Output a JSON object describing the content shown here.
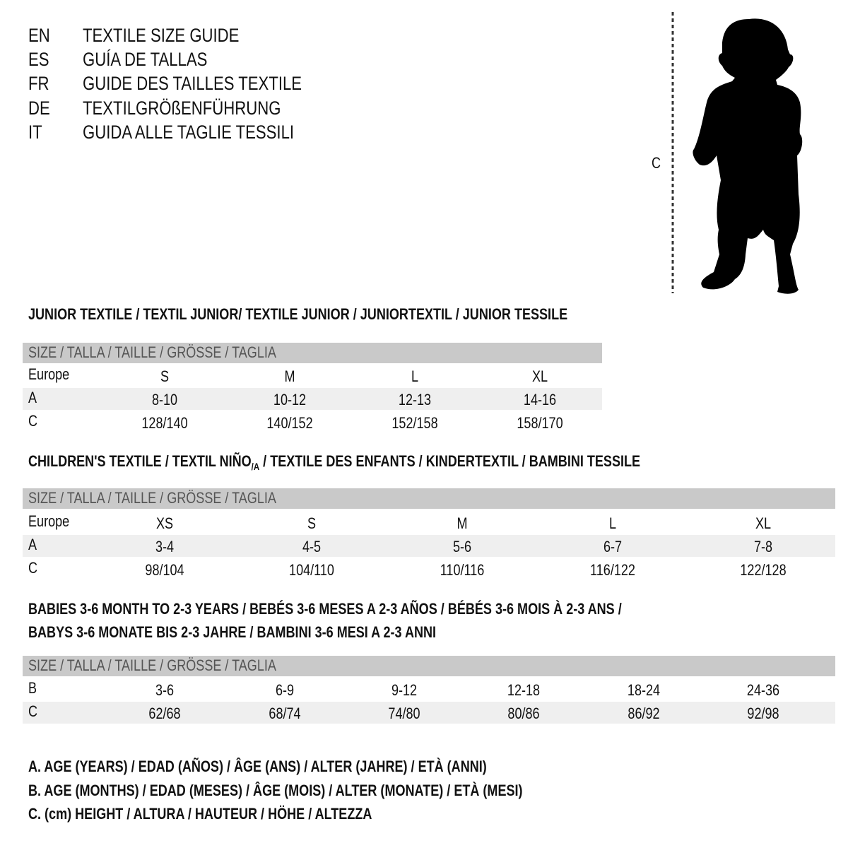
{
  "languages": [
    {
      "code": "EN",
      "text": "TEXTILE SIZE GUIDE"
    },
    {
      "code": "ES",
      "text": "GUÍA DE TALLAS"
    },
    {
      "code": "FR",
      "text": "GUIDE DES TAILLES TEXTILE"
    },
    {
      "code": "DE",
      "text": "TEXTILGRÖßENFÜHRUNG"
    },
    {
      "code": "IT",
      "text": "GUIDA ALLE TAGLIE TESSILI"
    }
  ],
  "figure": {
    "measure_label": "C",
    "icon": "child-silhouette"
  },
  "size_header": "SIZE / TALLA / TAILLE / GRÖSSE / TAGLIA",
  "junior": {
    "title": "JUNIOR TEXTILE / TEXTIL JUNIOR/ TEXTILE JUNIOR / JUNIORTEXTIL / JUNIOR TESSILE",
    "rows": [
      {
        "label": "Europe",
        "values": [
          "S",
          "M",
          "L",
          "XL"
        ]
      },
      {
        "label": "A",
        "values": [
          "8-10",
          "10-12",
          "12-13",
          "14-16"
        ]
      },
      {
        "label": "C",
        "values": [
          "128/140",
          "140/152",
          "152/158",
          "158/170"
        ]
      }
    ]
  },
  "children": {
    "title_pre": "CHILDREN'S TEXTILE / TEXTIL NIÑO",
    "title_sub": "/A",
    "title_post": " / TEXTILE DES ENFANTS / KINDERTEXTIL / BAMBINI TESSILE",
    "rows": [
      {
        "label": "Europe",
        "values": [
          "XS",
          "S",
          "M",
          "L",
          "XL"
        ]
      },
      {
        "label": "A",
        "values": [
          "3-4",
          "4-5",
          "5-6",
          "6-7",
          "7-8"
        ]
      },
      {
        "label": "C",
        "values": [
          "98/104",
          "104/110",
          "110/116",
          "116/122",
          "122/128"
        ]
      }
    ]
  },
  "babies": {
    "title_line1": "BABIES 3-6 MONTH TO 2-3 YEARS / BEBÉS 3-6 MESES A 2-3 AÑOS / BÉBÉS 3-6 MOIS À 2-3 ANS /",
    "title_line2": "BABYS 3-6 MONATE BIS 2-3 JAHRE / BAMBINI 3-6 MESI A 2-3 ANNI",
    "rows": [
      {
        "label": "B",
        "values": [
          "3-6",
          "6-9",
          "9-12",
          "12-18",
          "18-24",
          "24-36"
        ]
      },
      {
        "label": "C",
        "values": [
          "62/68",
          "68/74",
          "74/80",
          "80/86",
          "86/92",
          "92/98"
        ]
      }
    ]
  },
  "legend": [
    "A. AGE (YEARS) / EDAD (AÑOS) / ÂGE (ANS) / ALTER (JAHRE) / ETÀ (ANNI)",
    "B. AGE (MONTHS) / EDAD (MESES) / ÂGE (MOIS) / ALTER (MONATE) / ETÀ (MESI)",
    "C. (cm) HEIGHT / ALTURA / HAUTEUR / HÖHE / ALTEZZA"
  ]
}
